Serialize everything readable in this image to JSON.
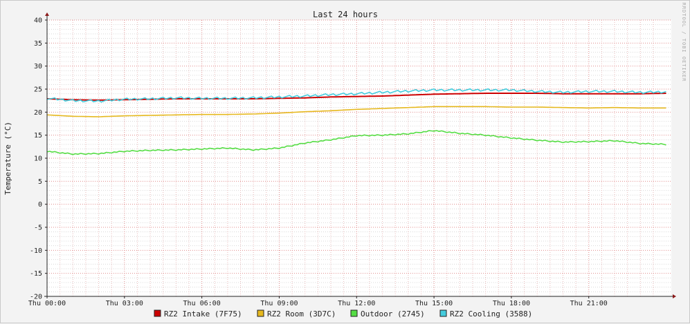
{
  "chart_data": {
    "type": "line",
    "title": "Last 24 hours",
    "xlabel": "",
    "ylabel": "Temperature (°C)",
    "watermark": "RRDTOOL / TOBI OETIKER",
    "ylim": [
      -20,
      40
    ],
    "ytick_step": 5,
    "yticks": [
      "40",
      "35",
      "30",
      "25",
      "20",
      "15",
      "10",
      "5",
      "0",
      "-5",
      "-10",
      "-15",
      "-20"
    ],
    "xlim_hours": [
      0,
      24.2
    ],
    "xticks": [
      {
        "hour": 0,
        "label": "Thu 00:00"
      },
      {
        "hour": 3,
        "label": "Thu 03:00"
      },
      {
        "hour": 6,
        "label": "Thu 06:00"
      },
      {
        "hour": 9,
        "label": "Thu 09:00"
      },
      {
        "hour": 12,
        "label": "Thu 12:00"
      },
      {
        "hour": 15,
        "label": "Thu 15:00"
      },
      {
        "hour": 18,
        "label": "Thu 18:00"
      },
      {
        "hour": 21,
        "label": "Thu 21:00"
      }
    ],
    "grid": true,
    "legend_position": "bottom",
    "x_hours": [
      0,
      1,
      2,
      3,
      4,
      5,
      6,
      7,
      8,
      9,
      10,
      11,
      12,
      13,
      14,
      15,
      16,
      17,
      18,
      19,
      20,
      21,
      22,
      23,
      24
    ],
    "series": [
      {
        "name": "RZ2 Intake (7F75)",
        "color": "#cc0000",
        "values": [
          22.9,
          22.7,
          22.6,
          22.7,
          22.8,
          22.9,
          22.9,
          22.9,
          22.9,
          23.0,
          23.1,
          23.3,
          23.4,
          23.5,
          23.7,
          23.9,
          24.0,
          24.1,
          24.1,
          24.1,
          24.0,
          24.0,
          24.0,
          24.0,
          24.1
        ]
      },
      {
        "name": "RZ2 Room (3D7C)",
        "color": "#e6b81e",
        "values": [
          19.4,
          19.1,
          19.0,
          19.2,
          19.3,
          19.4,
          19.5,
          19.5,
          19.6,
          19.8,
          20.1,
          20.3,
          20.6,
          20.8,
          21.0,
          21.2,
          21.2,
          21.2,
          21.1,
          21.1,
          21.0,
          20.9,
          21.0,
          20.9,
          20.9
        ]
      },
      {
        "name": "Outdoor (2745)",
        "color": "#55dd44",
        "values": [
          11.5,
          10.9,
          11.0,
          11.5,
          11.7,
          11.8,
          12.0,
          12.2,
          11.8,
          12.2,
          13.3,
          14.0,
          14.9,
          15.0,
          15.3,
          16.0,
          15.4,
          15.0,
          14.4,
          13.9,
          13.5,
          13.6,
          13.8,
          13.2,
          13.0
        ]
      },
      {
        "name": "RZ2 Cooling (3588)",
        "color": "#44ccdd",
        "values": [
          23.0,
          22.5,
          22.4,
          22.8,
          22.9,
          23.1,
          23.0,
          23.0,
          23.1,
          23.3,
          23.5,
          23.8,
          24.0,
          24.3,
          24.6,
          24.8,
          24.8,
          24.8,
          24.8,
          24.5,
          24.3,
          24.5,
          24.5,
          24.3,
          24.4
        ]
      }
    ]
  }
}
